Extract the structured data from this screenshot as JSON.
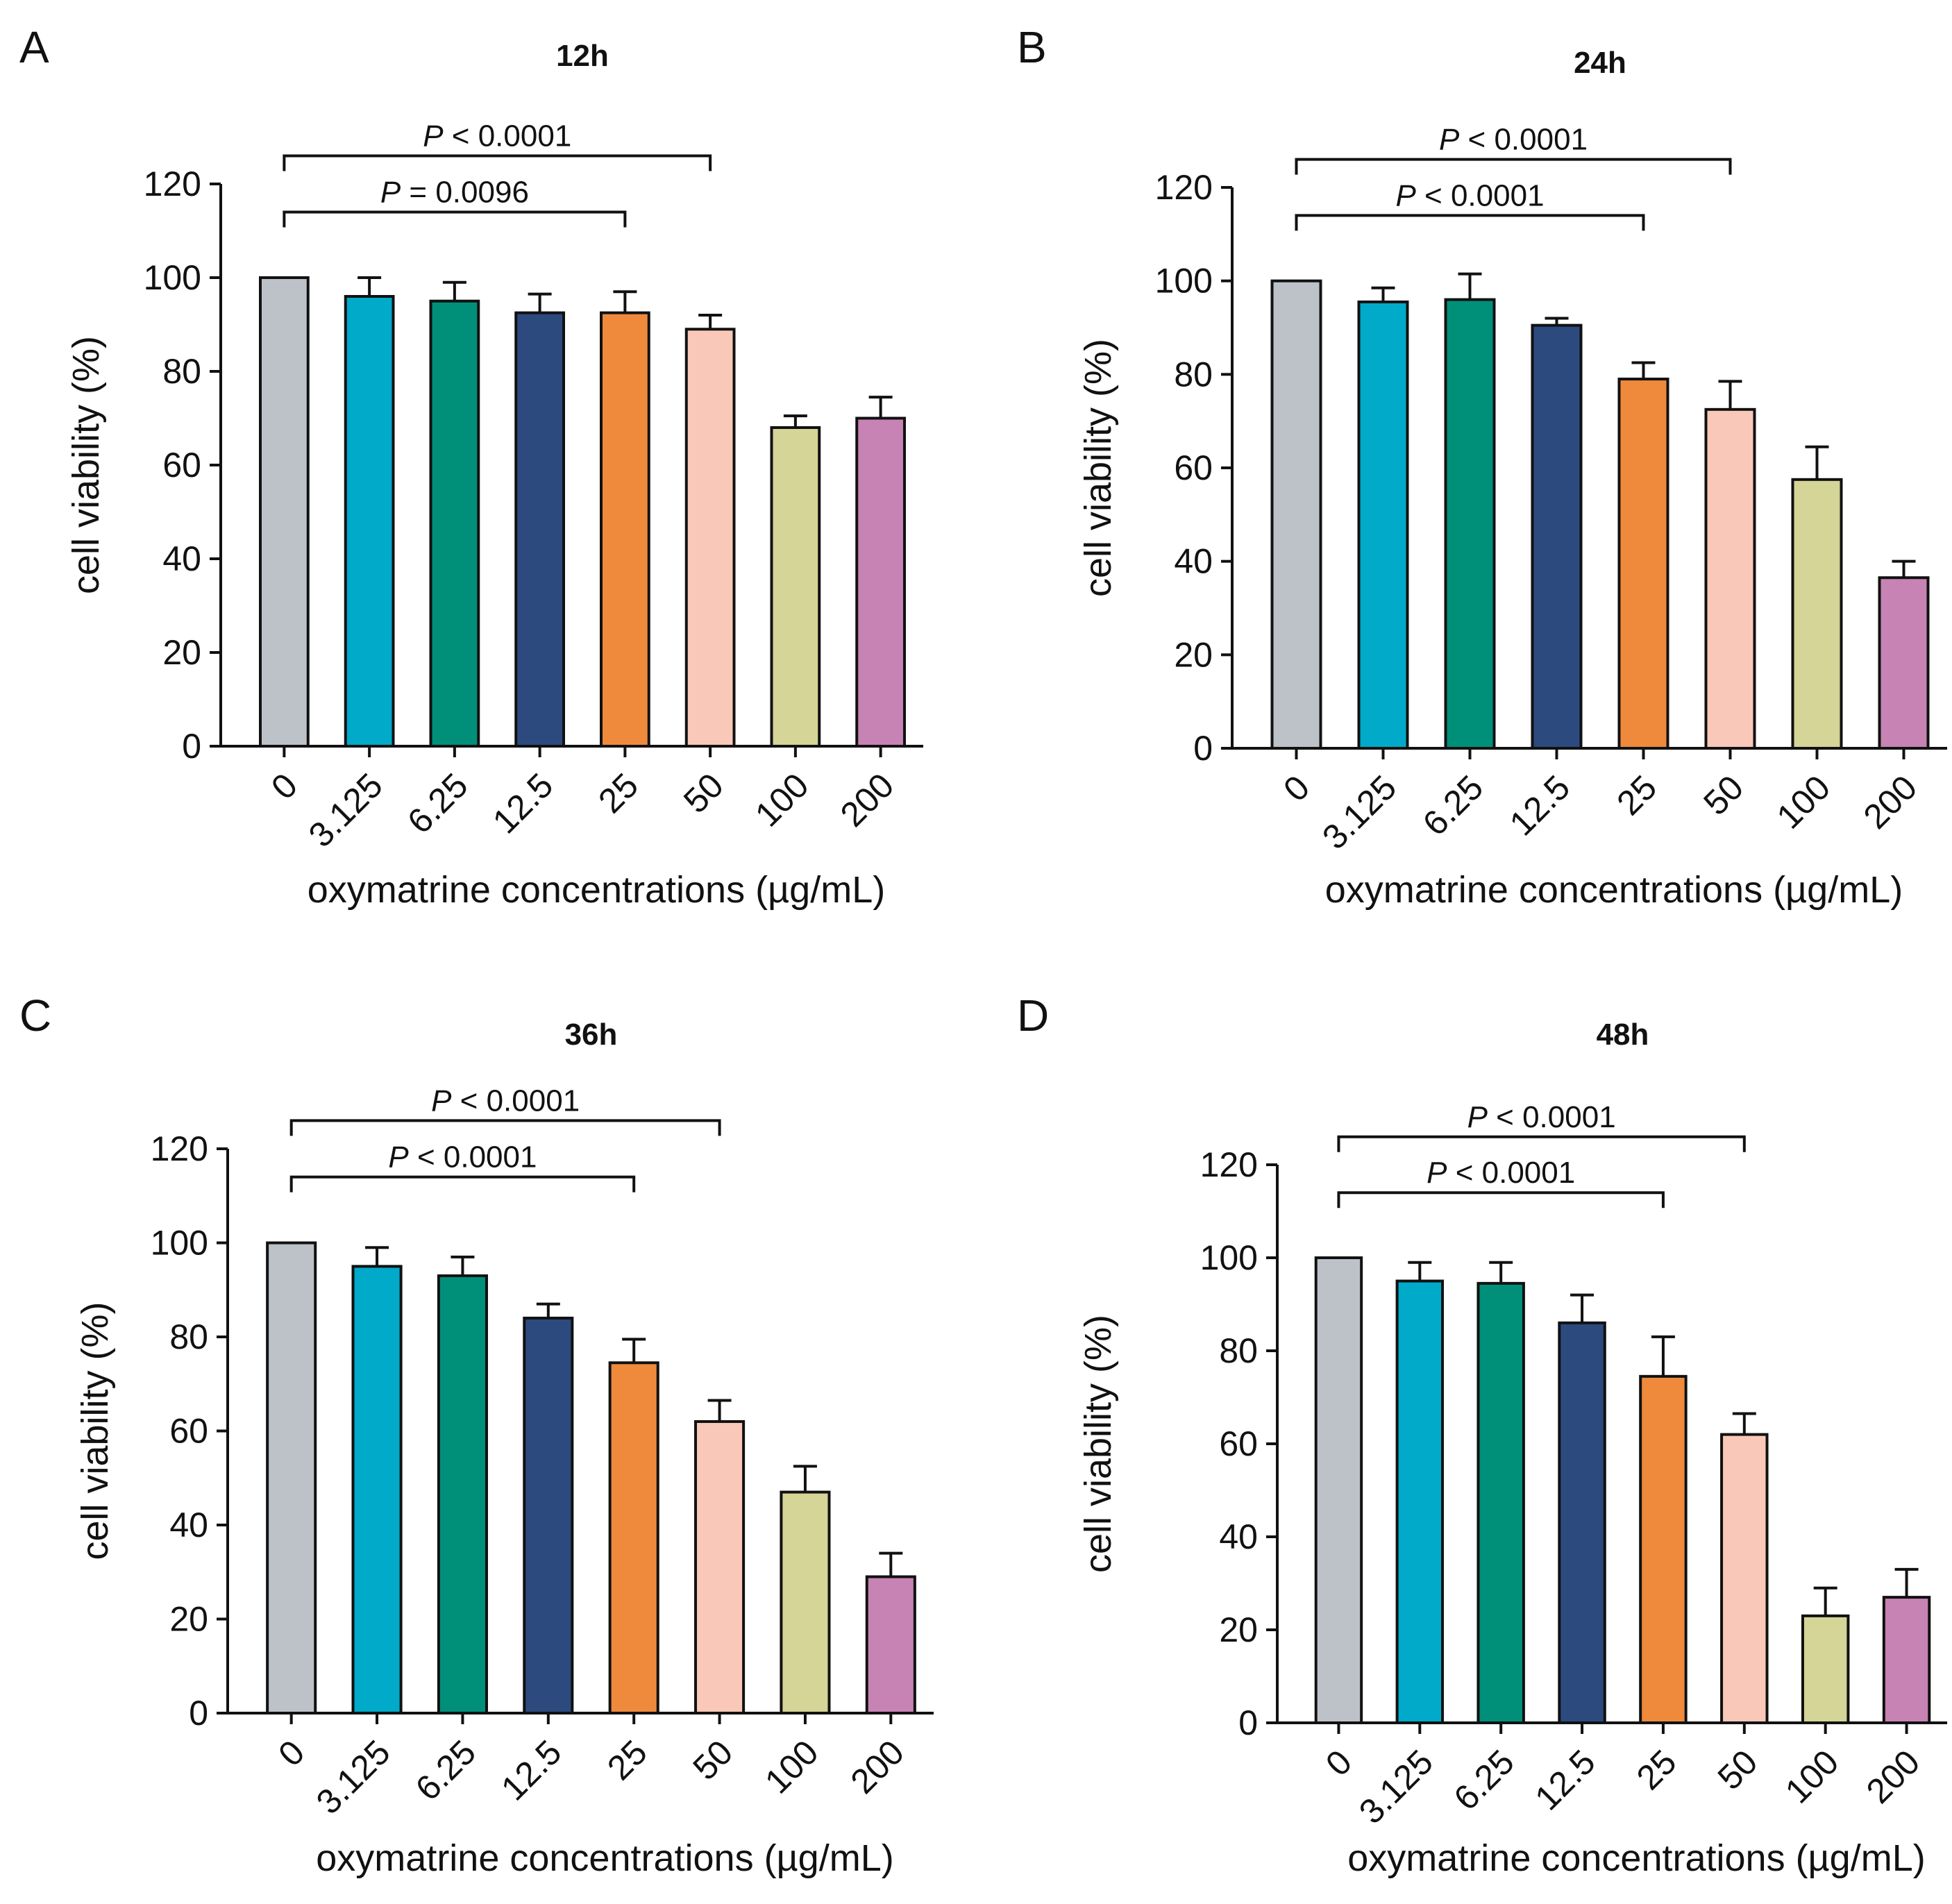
{
  "figure": {
    "x_label": "oxymatrine concentrations (µg/mL)",
    "y_label": "cell viability (%)",
    "categories": [
      "0",
      "3.125",
      "6.25",
      "12.5",
      "25",
      "50",
      "100",
      "200"
    ],
    "colors": [
      "#bdc2c8",
      "#00aac8",
      "#00907a",
      "#2c4a7e",
      "#ef8a3c",
      "#f9c8b8",
      "#d4d596",
      "#c683b3"
    ]
  },
  "chart_data": [
    {
      "type": "bar",
      "panel": "A",
      "title": "12h",
      "xlabel": "oxymatrine concentrations (µg/mL)",
      "ylabel": "cell viability (%)",
      "ylim": [
        0,
        120
      ],
      "yticks": [
        0,
        20,
        40,
        60,
        80,
        100,
        120
      ],
      "categories": [
        "0",
        "3.125",
        "6.25",
        "12.5",
        "25",
        "50",
        "100",
        "200"
      ],
      "values": [
        100,
        96,
        95,
        92.5,
        92.5,
        89,
        68,
        70
      ],
      "errors": [
        0,
        4,
        4,
        4,
        4.5,
        3,
        2.5,
        4.5
      ],
      "significance": [
        {
          "from": "0",
          "to": "25",
          "label_prefix": "P",
          "label_rest": " = 0.0096",
          "level": 1
        },
        {
          "from": "0",
          "to": "50",
          "label_prefix": "P",
          "label_rest": " < 0.0001",
          "level": 2
        }
      ]
    },
    {
      "type": "bar",
      "panel": "B",
      "title": "24h",
      "xlabel": "oxymatrine concentrations (µg/mL)",
      "ylabel": "cell viability (%)",
      "ylim": [
        0,
        120
      ],
      "yticks": [
        0,
        20,
        40,
        60,
        80,
        100,
        120
      ],
      "categories": [
        "0",
        "3.125",
        "6.25",
        "12.5",
        "25",
        "50",
        "100",
        "200"
      ],
      "values": [
        100,
        95.5,
        96,
        90.5,
        79,
        72.5,
        57.5,
        36.5
      ],
      "errors": [
        0,
        3,
        5.5,
        1.5,
        3.5,
        6,
        7,
        3.5
      ],
      "significance": [
        {
          "from": "0",
          "to": "25",
          "label_prefix": "P",
          "label_rest": " < 0.0001",
          "level": 1
        },
        {
          "from": "0",
          "to": "50",
          "label_prefix": "P",
          "label_rest": " < 0.0001",
          "level": 2
        }
      ]
    },
    {
      "type": "bar",
      "panel": "C",
      "title": "36h",
      "xlabel": "oxymatrine concentrations (µg/mL)",
      "ylabel": "cell viability (%)",
      "ylim": [
        0,
        120
      ],
      "yticks": [
        0,
        20,
        40,
        60,
        80,
        100,
        120
      ],
      "categories": [
        "0",
        "3.125",
        "6.25",
        "12.5",
        "25",
        "50",
        "100",
        "200"
      ],
      "values": [
        100,
        95,
        93,
        84,
        74.5,
        62,
        47,
        29
      ],
      "errors": [
        0,
        4,
        4,
        3,
        5,
        4.5,
        5.5,
        5
      ],
      "significance": [
        {
          "from": "0",
          "to": "25",
          "label_prefix": "P",
          "label_rest": " < 0.0001",
          "level": 1
        },
        {
          "from": "0",
          "to": "50",
          "label_prefix": "P",
          "label_rest": " < 0.0001",
          "level": 2
        }
      ]
    },
    {
      "type": "bar",
      "panel": "D",
      "title": "48h",
      "xlabel": "oxymatrine concentrations (µg/mL)",
      "ylabel": "cell viability (%)",
      "ylim": [
        0,
        120
      ],
      "yticks": [
        0,
        20,
        40,
        60,
        80,
        100,
        120
      ],
      "categories": [
        "0",
        "3.125",
        "6.25",
        "12.5",
        "25",
        "50",
        "100",
        "200"
      ],
      "values": [
        100,
        95,
        94.5,
        86,
        74.5,
        62,
        23,
        27
      ],
      "errors": [
        0,
        4,
        4.5,
        6,
        8.5,
        4.5,
        6,
        6
      ],
      "significance": [
        {
          "from": "0",
          "to": "25",
          "label_prefix": "P",
          "label_rest": " < 0.0001",
          "level": 1
        },
        {
          "from": "0",
          "to": "50",
          "label_prefix": "P",
          "label_rest": " < 0.0001",
          "level": 2
        }
      ]
    }
  ]
}
